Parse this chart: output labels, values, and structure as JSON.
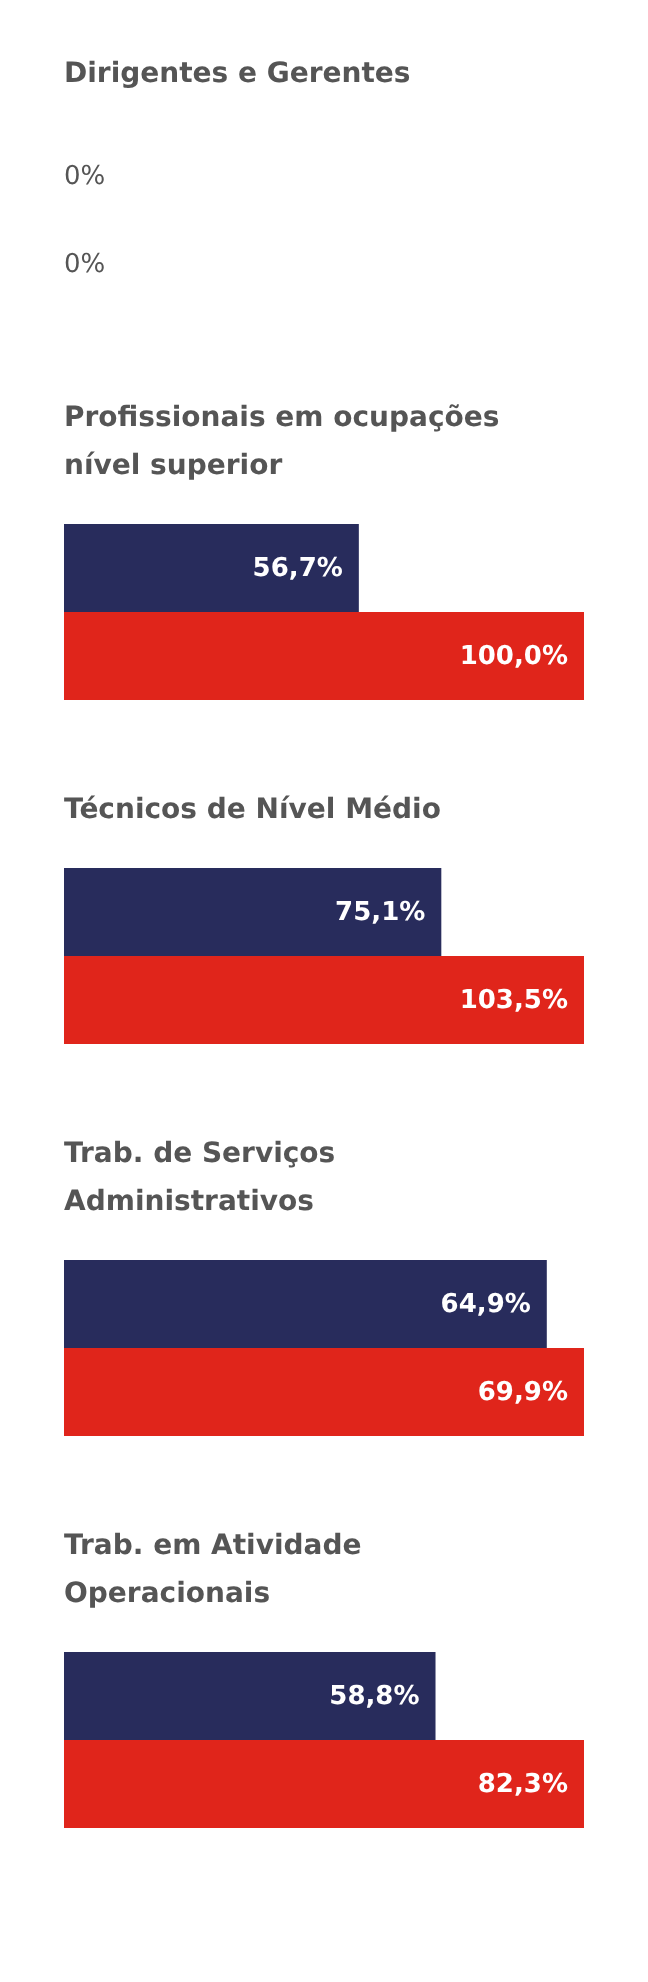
{
  "chart_data": [
    {
      "type": "other",
      "title": "Dirigentes e Gerentes",
      "annotations": [
        "0%",
        "0%"
      ]
    },
    {
      "type": "bar",
      "orientation": "horizontal",
      "title": "Profissionais em ocupações nível superior",
      "categories": [
        null,
        null
      ],
      "values": [
        56.7,
        100.0
      ],
      "colors": [
        "#282c5c",
        "#e0251b"
      ],
      "value_labels": [
        "56,7%",
        "100,0%"
      ],
      "tick_labels": false
    },
    {
      "type": "bar",
      "orientation": "horizontal",
      "title": "Técnicos de Nível Médio",
      "categories": [
        null,
        null
      ],
      "values": [
        75.1,
        103.5
      ],
      "colors": [
        "#282c5c",
        "#e0251b"
      ],
      "value_labels": [
        "75,1%",
        "103,5%"
      ],
      "tick_labels": false
    },
    {
      "type": "bar",
      "orientation": "horizontal",
      "title": "Trab. de Serviços Administrativos",
      "categories": [
        null,
        null
      ],
      "values": [
        64.9,
        69.9
      ],
      "colors": [
        "#282c5c",
        "#e0251b"
      ],
      "value_labels": [
        "64,9%",
        "69,9%"
      ],
      "tick_labels": false
    },
    {
      "type": "bar",
      "orientation": "horizontal",
      "title": "Trab. em Atividade Operacionais",
      "categories": [
        null,
        null
      ],
      "values": [
        58.8,
        82.3
      ],
      "colors": [
        "#282c5c",
        "#e0251b"
      ],
      "value_labels": [
        "58,8%",
        "82,3%"
      ],
      "tick_labels": false
    }
  ]
}
